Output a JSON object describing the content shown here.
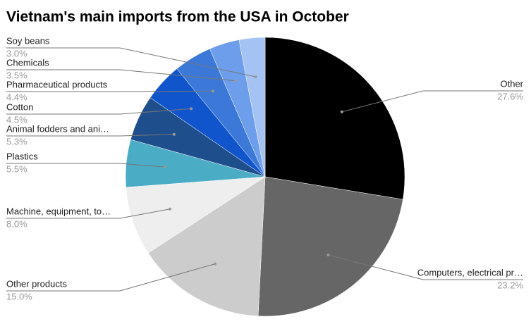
{
  "chart_data": {
    "type": "pie",
    "title": "Vietnam's main imports from the USA in October",
    "categories": [
      "Other",
      "Computers, electrical pr…",
      "Other products",
      "Machine, equipment, to…",
      "Plastics",
      "Animal fodders and ani…",
      "Cotton",
      "Pharmaceutical products",
      "Chemicals",
      "Soy beans"
    ],
    "values": [
      27.6,
      23.2,
      15.0,
      8.0,
      5.5,
      5.3,
      4.5,
      4.4,
      3.5,
      3.0
    ],
    "value_labels": [
      "27.6%",
      "23.2%",
      "15.0%",
      "8.0%",
      "5.5%",
      "5.3%",
      "4.5%",
      "4.4%",
      "3.5%",
      "3.0%"
    ],
    "colors": [
      "#000000",
      "#666666",
      "#cccccc",
      "#eeeeee",
      "#4bacc6",
      "#1f4e8c",
      "#1155cc",
      "#3c78d8",
      "#6d9eeb",
      "#a4c2f4"
    ]
  }
}
